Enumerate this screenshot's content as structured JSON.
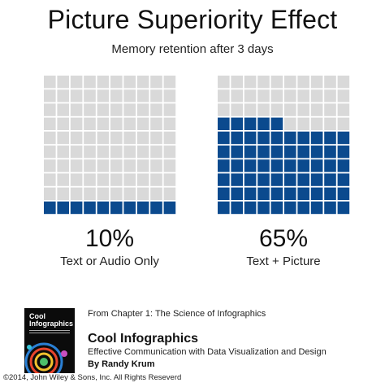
{
  "header": {
    "title": "Picture Superiority Effect",
    "subtitle": "Memory retention after 3 days"
  },
  "colors": {
    "filled": "#0b4a8e",
    "empty": "#d9d9d9"
  },
  "chart_data": [
    {
      "type": "waffle",
      "rows": 10,
      "cols": 10,
      "value_percent": 10,
      "value_label": "10%",
      "category_label": "Text or Audio Only"
    },
    {
      "type": "waffle",
      "rows": 10,
      "cols": 10,
      "value_percent": 65,
      "value_label": "65%",
      "category_label": "Text + Picture"
    }
  ],
  "footer": {
    "book_cover_title": "Cool Infographics",
    "chapter_note": "From Chapter 1: The Science of Infographics",
    "book_name": "Cool Infographics",
    "book_subtitle": "Effective Communication with Data Visualization and Design",
    "author": "By Randy Krum",
    "copyright": "©2014, John Wiley & Sons, Inc. All Rights Reseverd"
  }
}
